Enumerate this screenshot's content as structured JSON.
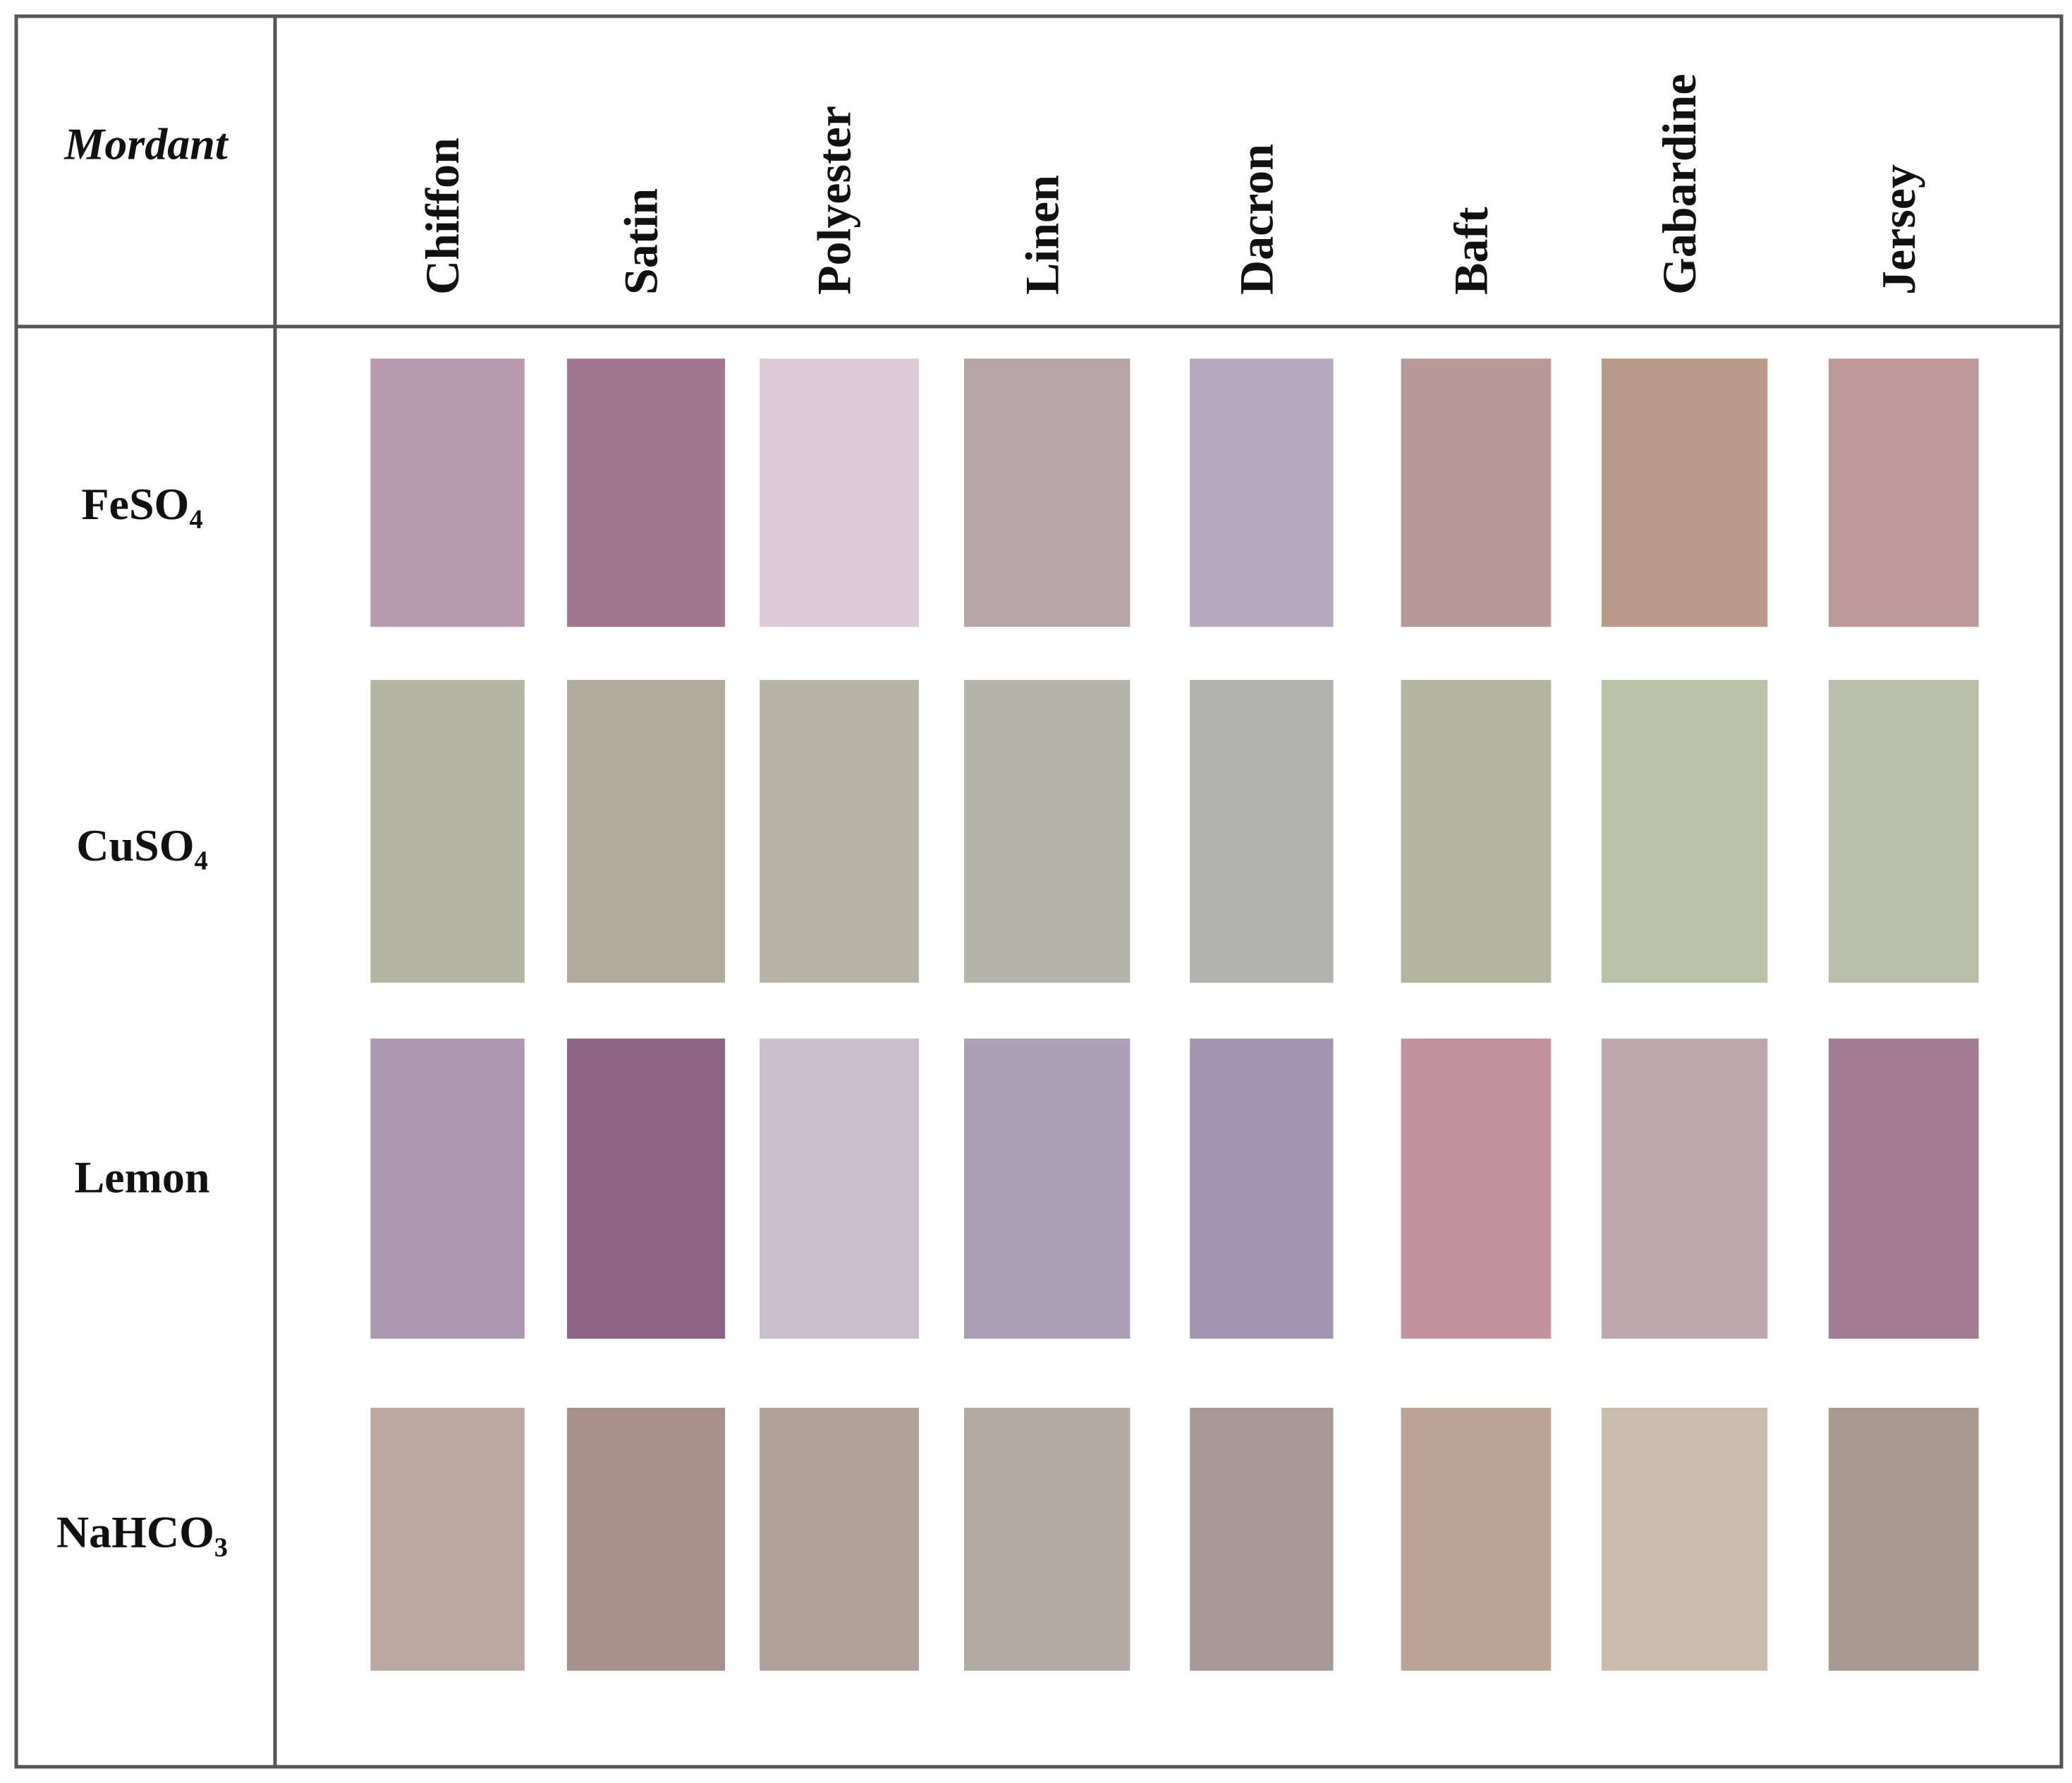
{
  "table": {
    "header": "Mordant",
    "columns": [
      "Chiffon",
      "Satin",
      "Polyester",
      "Linen",
      "Dacron",
      "Baft",
      "Gabardine",
      "Jersey"
    ],
    "rows": [
      {
        "label": "FeSO₄",
        "swatches": [
          "#b89aae",
          "#a07690",
          "#dccbd9",
          "#b5a6a8",
          "#b8a8bc",
          "#b8999a",
          "#b89a88",
          "#bc999b"
        ]
      },
      {
        "label": "CuSO₄",
        "swatches": [
          "#b4b5a3",
          "#b3ab9c",
          "#b6b4a4",
          "#b4b4aa",
          "#b0b2ab",
          "#b3b49e",
          "#bac3a8",
          "#b8bea8"
        ]
      },
      {
        "label": "Lemon",
        "swatches": [
          "#ab98b0",
          "#8c6485",
          "#cbbdcd",
          "#ab9fb5",
          "#a394b2",
          "#c0939f",
          "#bfa8ad",
          "#a07b92"
        ]
      },
      {
        "label": "NaHCO₃",
        "swatches": [
          "#bea8a2",
          "#a7908a",
          "#aea299",
          "#b2aaa3",
          "#a89896",
          "#b9a495",
          "#cbbdad",
          "#a89a8e"
        ]
      }
    ]
  }
}
